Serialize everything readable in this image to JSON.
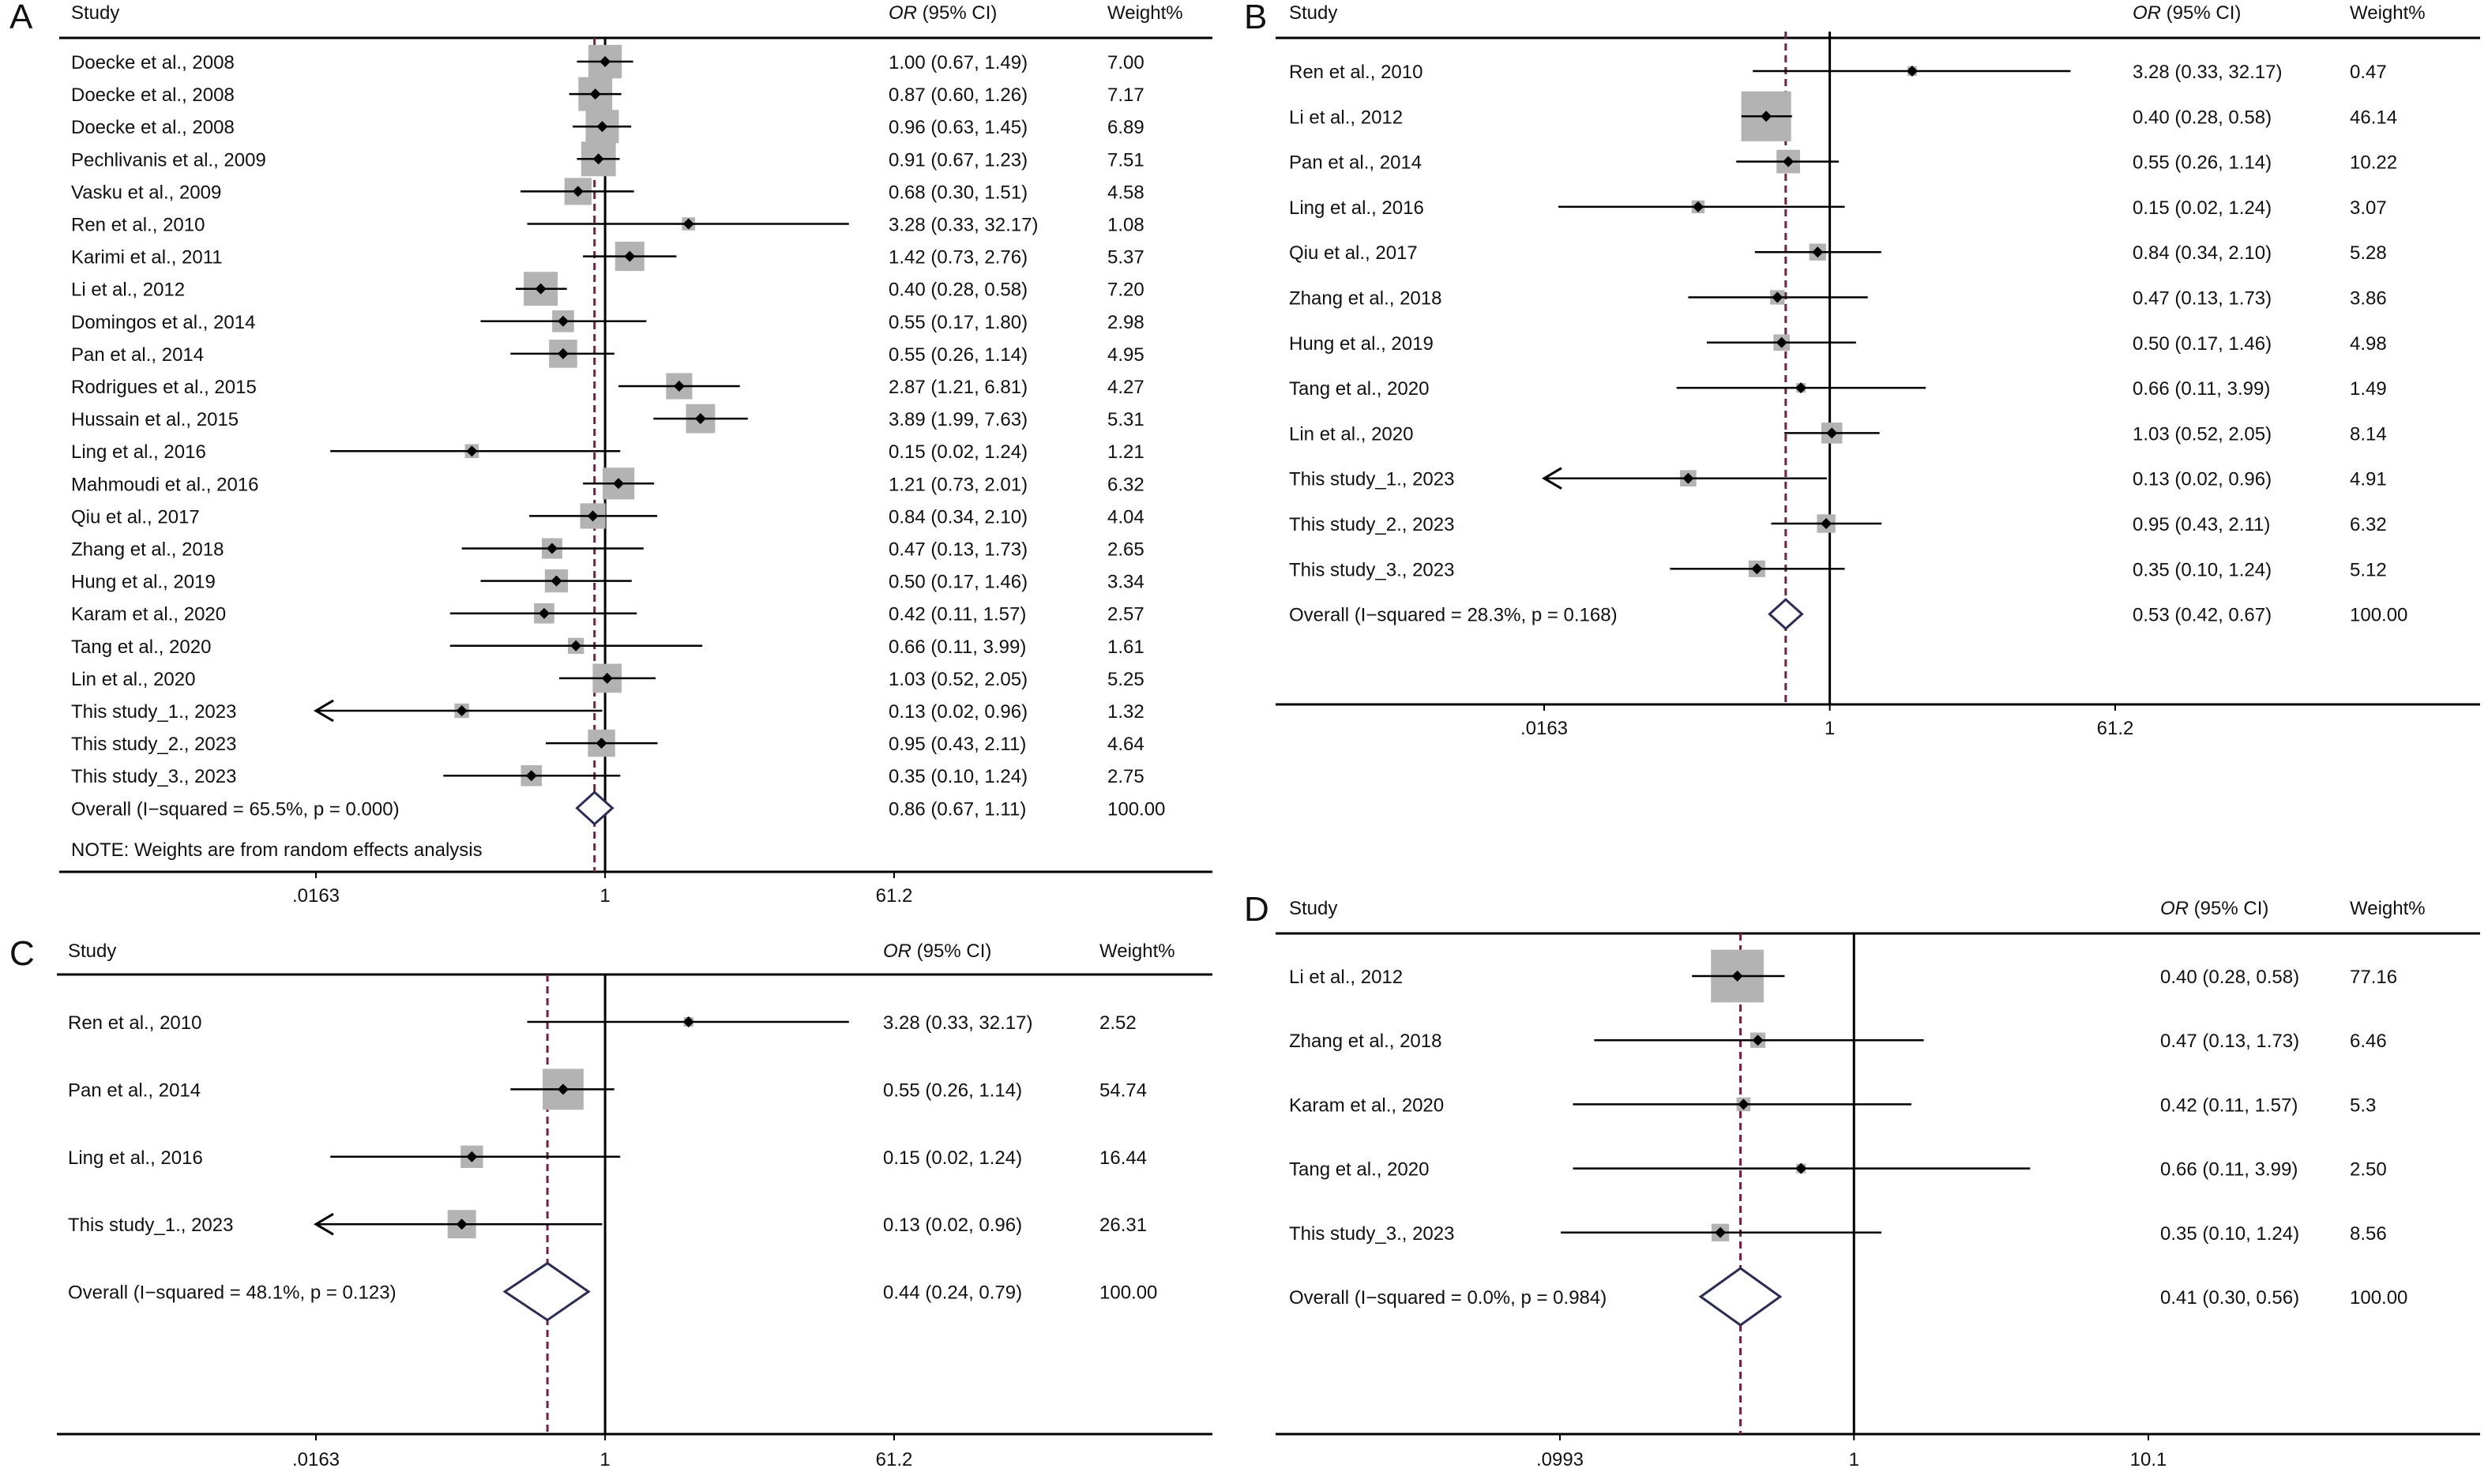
{
  "colors": {
    "box": "#b3b3b3",
    "line": "#000000",
    "ref_dashed": "#7a1f3a",
    "diamond": "#2b2b5e",
    "text": "#111111"
  },
  "chart_data": [
    {
      "panel": "A",
      "type": "forest",
      "scale": "log",
      "headers": {
        "study": "Study",
        "or_italic": "OR",
        "or_rest": " (95% CI)",
        "weight": "Weight%"
      },
      "ticks": [
        {
          "value": 0.0163,
          "label": ".0163"
        },
        {
          "value": 1,
          "label": "1"
        },
        {
          "value": 61.2,
          "label": "61.2"
        }
      ],
      "pooled": 0.86,
      "studies": [
        {
          "label": "Doecke et al., 2008",
          "or": 1.0,
          "lo": 0.67,
          "hi": 1.49,
          "ci_text": "1.00 (0.67, 1.49)",
          "weight": "7.00"
        },
        {
          "label": "Doecke et al., 2008",
          "or": 0.87,
          "lo": 0.6,
          "hi": 1.26,
          "ci_text": "0.87 (0.60, 1.26)",
          "weight": "7.17"
        },
        {
          "label": "Doecke et al., 2008",
          "or": 0.96,
          "lo": 0.63,
          "hi": 1.45,
          "ci_text": "0.96 (0.63, 1.45)",
          "weight": "6.89"
        },
        {
          "label": "Pechlivanis et al., 2009",
          "or": 0.91,
          "lo": 0.67,
          "hi": 1.23,
          "ci_text": "0.91 (0.67, 1.23)",
          "weight": "7.51"
        },
        {
          "label": "Vasku et al., 2009",
          "or": 0.68,
          "lo": 0.3,
          "hi": 1.51,
          "ci_text": "0.68 (0.30, 1.51)",
          "weight": "4.58"
        },
        {
          "label": "Ren et al., 2010",
          "or": 3.28,
          "lo": 0.33,
          "hi": 32.17,
          "ci_text": "3.28 (0.33, 32.17)",
          "weight": "1.08"
        },
        {
          "label": "Karimi et al., 2011",
          "or": 1.42,
          "lo": 0.73,
          "hi": 2.76,
          "ci_text": "1.42 (0.73, 2.76)",
          "weight": "5.37"
        },
        {
          "label": "Li et al., 2012",
          "or": 0.4,
          "lo": 0.28,
          "hi": 0.58,
          "ci_text": "0.40 (0.28, 0.58)",
          "weight": "7.20"
        },
        {
          "label": "Domingos et al., 2014",
          "or": 0.55,
          "lo": 0.17,
          "hi": 1.8,
          "ci_text": "0.55 (0.17, 1.80)",
          "weight": "2.98"
        },
        {
          "label": "Pan et al., 2014",
          "or": 0.55,
          "lo": 0.26,
          "hi": 1.14,
          "ci_text": "0.55 (0.26, 1.14)",
          "weight": "4.95"
        },
        {
          "label": "Rodrigues et al., 2015",
          "or": 2.87,
          "lo": 1.21,
          "hi": 6.81,
          "ci_text": "2.87 (1.21, 6.81)",
          "weight": "4.27"
        },
        {
          "label": "Hussain et al., 2015",
          "or": 3.89,
          "lo": 1.99,
          "hi": 7.63,
          "ci_text": "3.89 (1.99, 7.63)",
          "weight": "5.31"
        },
        {
          "label": "Ling et al., 2016",
          "or": 0.15,
          "lo": 0.02,
          "hi": 1.24,
          "ci_text": "0.15 (0.02, 1.24)",
          "weight": "1.21"
        },
        {
          "label": "Mahmoudi et al., 2016",
          "or": 1.21,
          "lo": 0.73,
          "hi": 2.01,
          "ci_text": "1.21 (0.73, 2.01)",
          "weight": "6.32"
        },
        {
          "label": "Qiu et al., 2017",
          "or": 0.84,
          "lo": 0.34,
          "hi": 2.1,
          "ci_text": "0.84 (0.34, 2.10)",
          "weight": "4.04"
        },
        {
          "label": "Zhang et al., 2018",
          "or": 0.47,
          "lo": 0.13,
          "hi": 1.73,
          "ci_text": "0.47 (0.13, 1.73)",
          "weight": "2.65"
        },
        {
          "label": "Hung et al., 2019",
          "or": 0.5,
          "lo": 0.17,
          "hi": 1.46,
          "ci_text": "0.50 (0.17, 1.46)",
          "weight": "3.34"
        },
        {
          "label": "Karam et al., 2020",
          "or": 0.42,
          "lo": 0.11,
          "hi": 1.57,
          "ci_text": "0.42 (0.11, 1.57)",
          "weight": "2.57"
        },
        {
          "label": "Tang et al., 2020",
          "or": 0.66,
          "lo": 0.11,
          "hi": 3.99,
          "ci_text": "0.66 (0.11, 3.99)",
          "weight": "1.61"
        },
        {
          "label": "Lin et al., 2020",
          "or": 1.03,
          "lo": 0.52,
          "hi": 2.05,
          "ci_text": "1.03 (0.52, 2.05)",
          "weight": "5.25"
        },
        {
          "label": "This study_1., 2023",
          "or": 0.13,
          "lo": 0.02,
          "hi": 0.96,
          "ci_text": "0.13 (0.02, 0.96)",
          "weight": "1.32",
          "arrow_left": true
        },
        {
          "label": "This study_2., 2023",
          "or": 0.95,
          "lo": 0.43,
          "hi": 2.11,
          "ci_text": "0.95 (0.43, 2.11)",
          "weight": "4.64"
        },
        {
          "label": "This study_3., 2023",
          "or": 0.35,
          "lo": 0.1,
          "hi": 1.24,
          "ci_text": "0.35 (0.10, 1.24)",
          "weight": "2.75"
        }
      ],
      "overall": {
        "label": "Overall  (I−squared = 65.5%, p = 0.000)",
        "or": 0.86,
        "lo": 0.67,
        "hi": 1.11,
        "ci_text": "0.86 (0.67, 1.11)",
        "weight": "100.00"
      },
      "note": "NOTE: Weights are from random effects analysis"
    },
    {
      "panel": "B",
      "type": "forest",
      "scale": "log",
      "headers": {
        "study": "Study",
        "or_italic": "OR",
        "or_rest": " (95% CI)",
        "weight": "Weight%"
      },
      "ticks": [
        {
          "value": 0.0163,
          "label": ".0163"
        },
        {
          "value": 1,
          "label": "1"
        },
        {
          "value": 61.2,
          "label": "61.2"
        }
      ],
      "pooled": 0.53,
      "studies": [
        {
          "label": "Ren et al., 2010",
          "or": 3.28,
          "lo": 0.33,
          "hi": 32.17,
          "ci_text": "3.28 (0.33, 32.17)",
          "weight": "0.47"
        },
        {
          "label": "Li et al., 2012",
          "or": 0.4,
          "lo": 0.28,
          "hi": 0.58,
          "ci_text": "0.40 (0.28, 0.58)",
          "weight": "46.14"
        },
        {
          "label": "Pan et al., 2014",
          "or": 0.55,
          "lo": 0.26,
          "hi": 1.14,
          "ci_text": "0.55 (0.26, 1.14)",
          "weight": "10.22"
        },
        {
          "label": "Ling et al., 2016",
          "or": 0.15,
          "lo": 0.02,
          "hi": 1.24,
          "ci_text": "0.15 (0.02, 1.24)",
          "weight": "3.07"
        },
        {
          "label": "Qiu et al., 2017",
          "or": 0.84,
          "lo": 0.34,
          "hi": 2.1,
          "ci_text": "0.84 (0.34, 2.10)",
          "weight": "5.28"
        },
        {
          "label": "Zhang et al., 2018",
          "or": 0.47,
          "lo": 0.13,
          "hi": 1.73,
          "ci_text": "0.47 (0.13, 1.73)",
          "weight": "3.86"
        },
        {
          "label": "Hung et al., 2019",
          "or": 0.5,
          "lo": 0.17,
          "hi": 1.46,
          "ci_text": "0.50 (0.17, 1.46)",
          "weight": "4.98"
        },
        {
          "label": "Tang et al., 2020",
          "or": 0.66,
          "lo": 0.11,
          "hi": 3.99,
          "ci_text": "0.66 (0.11, 3.99)",
          "weight": "1.49"
        },
        {
          "label": "Lin et al., 2020",
          "or": 1.03,
          "lo": 0.52,
          "hi": 2.05,
          "ci_text": "1.03 (0.52, 2.05)",
          "weight": "8.14"
        },
        {
          "label": "This study_1., 2023",
          "or": 0.13,
          "lo": 0.02,
          "hi": 0.96,
          "ci_text": "0.13 (0.02, 0.96)",
          "weight": "4.91",
          "arrow_left": true
        },
        {
          "label": "This study_2., 2023",
          "or": 0.95,
          "lo": 0.43,
          "hi": 2.11,
          "ci_text": "0.95 (0.43, 2.11)",
          "weight": "6.32"
        },
        {
          "label": "This study_3., 2023",
          "or": 0.35,
          "lo": 0.1,
          "hi": 1.24,
          "ci_text": "0.35 (0.10, 1.24)",
          "weight": "5.12"
        }
      ],
      "overall": {
        "label": "Overall  (I−squared = 28.3%, p = 0.168)",
        "or": 0.53,
        "lo": 0.42,
        "hi": 0.67,
        "ci_text": "0.53 (0.42, 0.67)",
        "weight": "100.00"
      }
    },
    {
      "panel": "C",
      "type": "forest",
      "scale": "log",
      "headers": {
        "study": "Study",
        "or_italic": "OR",
        "or_rest": " (95% CI)",
        "weight": "Weight%"
      },
      "ticks": [
        {
          "value": 0.0163,
          "label": ".0163"
        },
        {
          "value": 1,
          "label": "1"
        },
        {
          "value": 61.2,
          "label": "61.2"
        }
      ],
      "pooled": 0.44,
      "studies": [
        {
          "label": "Ren et al., 2010",
          "or": 3.28,
          "lo": 0.33,
          "hi": 32.17,
          "ci_text": "3.28 (0.33, 32.17)",
          "weight": "2.52"
        },
        {
          "label": "Pan et al., 2014",
          "or": 0.55,
          "lo": 0.26,
          "hi": 1.14,
          "ci_text": "0.55 (0.26, 1.14)",
          "weight": "54.74"
        },
        {
          "label": "Ling et al., 2016",
          "or": 0.15,
          "lo": 0.02,
          "hi": 1.24,
          "ci_text": "0.15 (0.02, 1.24)",
          "weight": "16.44"
        },
        {
          "label": "This study_1., 2023",
          "or": 0.13,
          "lo": 0.02,
          "hi": 0.96,
          "ci_text": "0.13 (0.02, 0.96)",
          "weight": "26.31",
          "arrow_left": true
        }
      ],
      "overall": {
        "label": "Overall  (I−squared = 48.1%, p = 0.123)",
        "or": 0.44,
        "lo": 0.24,
        "hi": 0.79,
        "ci_text": "0.44 (0.24, 0.79)",
        "weight": "100.00"
      }
    },
    {
      "panel": "D",
      "type": "forest",
      "scale": "log",
      "headers": {
        "study": "Study",
        "or_italic": "OR",
        "or_rest": " (95% CI)",
        "weight": "Weight%"
      },
      "ticks": [
        {
          "value": 0.0993,
          "label": ".0993"
        },
        {
          "value": 1,
          "label": "1"
        },
        {
          "value": 10.1,
          "label": "10.1"
        }
      ],
      "pooled": 0.41,
      "studies": [
        {
          "label": "Li et al., 2012",
          "or": 0.4,
          "lo": 0.28,
          "hi": 0.58,
          "ci_text": "0.40 (0.28, 0.58)",
          "weight": "77.16"
        },
        {
          "label": "Zhang et al., 2018",
          "or": 0.47,
          "lo": 0.13,
          "hi": 1.73,
          "ci_text": "0.47 (0.13, 1.73)",
          "weight": "6.46"
        },
        {
          "label": "Karam et al., 2020",
          "or": 0.42,
          "lo": 0.11,
          "hi": 1.57,
          "ci_text": "0.42 (0.11, 1.57)",
          "weight": "5.3"
        },
        {
          "label": "Tang et al., 2020",
          "or": 0.66,
          "lo": 0.11,
          "hi": 3.99,
          "ci_text": "0.66 (0.11, 3.99)",
          "weight": "2.50"
        },
        {
          "label": "This study_3., 2023",
          "or": 0.35,
          "lo": 0.1,
          "hi": 1.24,
          "ci_text": "0.35 (0.10, 1.24)",
          "weight": "8.56"
        }
      ],
      "overall": {
        "label": "Overall  (I−squared = 0.0%, p = 0.984)",
        "or": 0.41,
        "lo": 0.3,
        "hi": 0.56,
        "ci_text": "0.41 (0.30, 0.56)",
        "weight": "100.00"
      }
    }
  ]
}
